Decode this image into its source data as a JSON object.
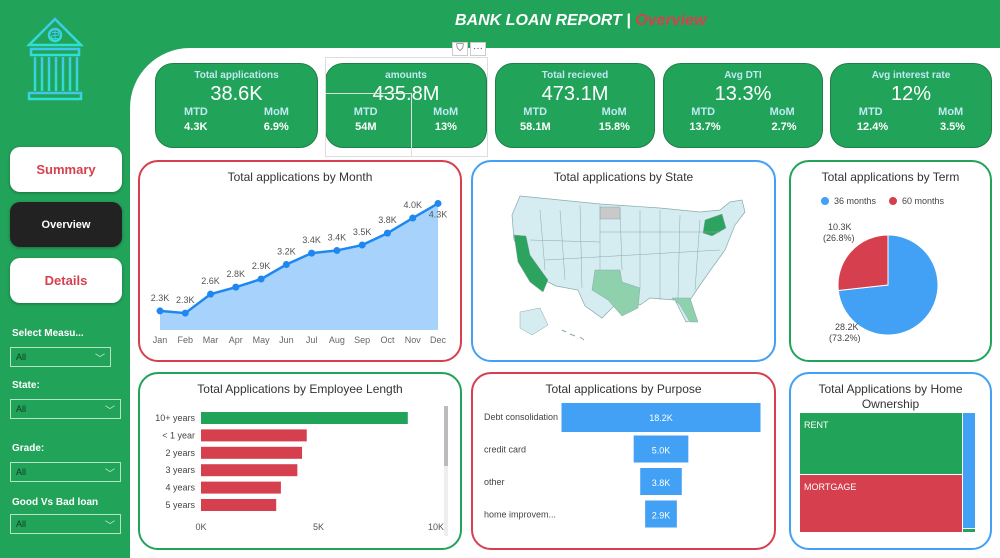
{
  "header": {
    "title": "BANK LOAN REPORT",
    "separator": " | ",
    "page": "Overview"
  },
  "nav": {
    "items": [
      {
        "label": "Summary"
      },
      {
        "label": "Overview"
      },
      {
        "label": "Details"
      }
    ]
  },
  "filters": [
    {
      "label": "Select Measu...",
      "value": "All"
    },
    {
      "label": "State:",
      "value": "All"
    },
    {
      "label": "Grade:",
      "value": "All"
    },
    {
      "label": "Good Vs Bad loan",
      "value": "All"
    }
  ],
  "kpis": [
    {
      "title": "Total applications",
      "value": "38.6K",
      "mtd_label": "MTD",
      "mom_label": "MoM",
      "mtd": "4.3K",
      "mom": "6.9%"
    },
    {
      "title": "amounts",
      "value": "435.8M",
      "mtd_label": "MTD",
      "mom_label": "MoM",
      "mtd": "54M",
      "mom": "13%"
    },
    {
      "title": "Total recieved",
      "value": "473.1M",
      "mtd_label": "MTD",
      "mom_label": "MoM",
      "mtd": "58.1M",
      "mom": "15.8%"
    },
    {
      "title": "Avg DTI",
      "value": "13.3%",
      "mtd_label": "MTD",
      "mom_label": "MoM",
      "mtd": "13.7%",
      "mom": "2.7%"
    },
    {
      "title": "Avg interest rate",
      "value": "12%",
      "mtd_label": "MTD",
      "mom_label": "MoM",
      "mtd": "12.4%",
      "mom": "3.5%"
    }
  ],
  "visual_toolbar": {
    "filter_icon": "filter-icon",
    "more_icon": "more-options-icon"
  },
  "colors": {
    "green": "#22a35a",
    "red": "#d6404e",
    "blue": "#42a0f5",
    "light_blue": "#a6d2fb"
  },
  "chart_data": [
    {
      "type": "area",
      "title": "Total applications by Month",
      "categories": [
        "Jan",
        "Feb",
        "Mar",
        "Apr",
        "May",
        "Jun",
        "Jul",
        "Aug",
        "Sep",
        "Oct",
        "Nov",
        "Dec"
      ],
      "values": [
        2.32,
        2.28,
        2.63,
        2.76,
        2.91,
        3.18,
        3.39,
        3.44,
        3.54,
        3.76,
        4.04,
        4.31
      ],
      "labels": [
        "2.3K",
        "2.3K",
        "2.6K",
        "2.8K",
        "2.9K",
        "3.2K",
        "3.4K",
        "3.4K",
        "3.5K",
        "3.8K",
        "4.0K",
        "4.3K"
      ],
      "unit": "K"
    },
    {
      "type": "map",
      "title": "Total applications by State"
    },
    {
      "type": "pie",
      "title": "Total applications by Term",
      "series": [
        {
          "name": "36 months",
          "value": 28.2,
          "label": "28.2K",
          "pct": "(73.2%)",
          "color": "#42a0f5"
        },
        {
          "name": "60 months",
          "value": 10.3,
          "label": "10.3K",
          "pct": "(26.8%)",
          "color": "#d6404e"
        }
      ],
      "legend": "top"
    },
    {
      "type": "bar",
      "title": "Total Applications by Employee Length",
      "categories": [
        "10+ years",
        "< 1 year",
        "2 years",
        "3 years",
        "4 years",
        "5 years"
      ],
      "values": [
        8.8,
        4.5,
        4.3,
        4.1,
        3.4,
        3.2
      ],
      "ticks": [
        "0K",
        "5K",
        "10K"
      ],
      "xlim": [
        0,
        10
      ]
    },
    {
      "type": "funnel",
      "title": "Total applications by Purpose",
      "categories": [
        "Debt consolidation",
        "credit card",
        "other",
        "home improvem..."
      ],
      "values": [
        18.2,
        5.0,
        3.8,
        2.9
      ],
      "labels": [
        "18.2K",
        "5.0K",
        "3.8K",
        "2.9K"
      ]
    },
    {
      "type": "treemap",
      "title": "Total Applications by Home Ownership",
      "categories": [
        "RENT",
        "MORTGAGE"
      ]
    }
  ]
}
